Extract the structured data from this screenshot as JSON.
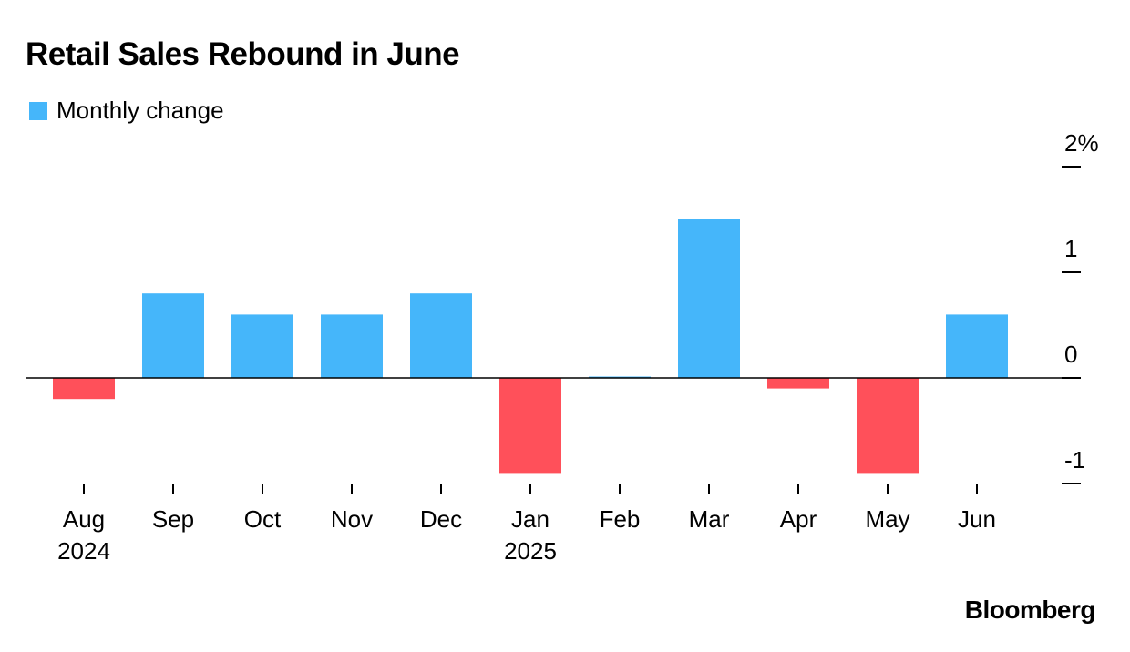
{
  "colors": {
    "positive": "#45b6fa",
    "negative": "#ff505a",
    "axis": "#000000"
  },
  "chart_data": {
    "type": "bar",
    "title": "Retail Sales Rebound in June",
    "legend": [
      "Monthly change"
    ],
    "legend_position": "top-left",
    "categories": [
      "Aug",
      "Sep",
      "Oct",
      "Nov",
      "Dec",
      "Jan",
      "Feb",
      "Mar",
      "Apr",
      "May",
      "Jun"
    ],
    "category_sublabels": [
      "2024",
      "",
      "",
      "",
      "",
      "2025",
      "",
      "",
      "",
      "",
      ""
    ],
    "series": [
      {
        "name": "Monthly change",
        "values": [
          -0.2,
          0.8,
          0.6,
          0.6,
          0.8,
          -0.9,
          0.0,
          1.5,
          -0.1,
          -0.9,
          0.6
        ]
      }
    ],
    "y_axis": {
      "position": "right",
      "ticks": [
        2,
        1,
        0,
        -1
      ],
      "tick_labels": [
        "2%",
        "1",
        "0",
        "-1"
      ],
      "ylim": [
        -1.1,
        2.0
      ]
    },
    "grid": false,
    "source": "Bloomberg"
  }
}
